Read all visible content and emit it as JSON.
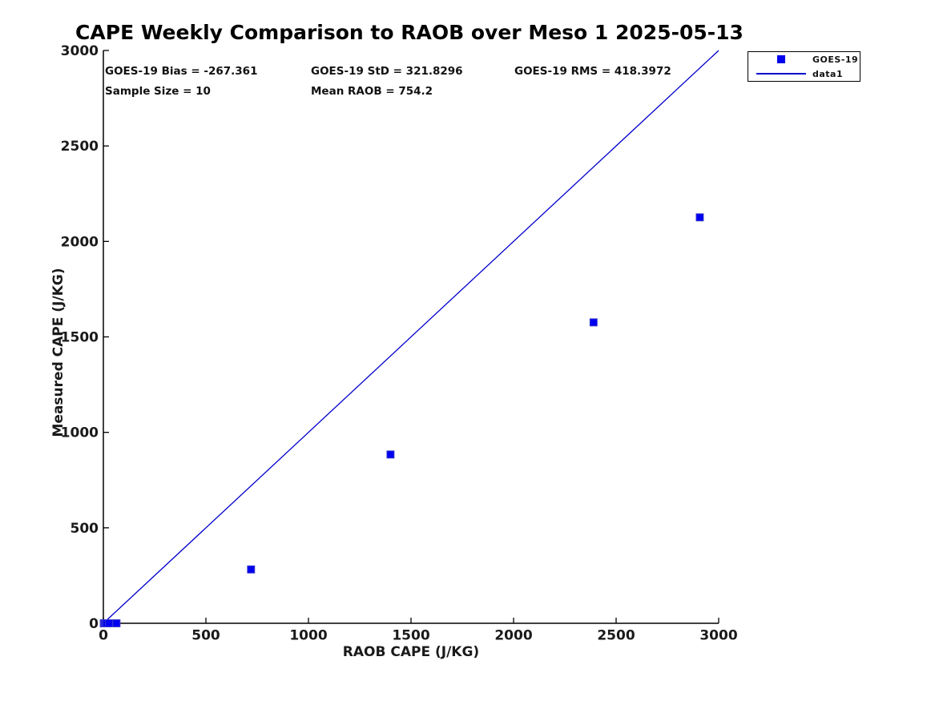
{
  "figure": {
    "title": "CAPE Weekly Comparison to RAOB over Meso 1 2025-05-13",
    "stats": {
      "bias": "GOES-19 Bias = -267.361",
      "std": "GOES-19 StD = 321.8296",
      "rms": "GOES-19 RMS = 418.3972",
      "sample_size": "Sample Size = 10",
      "mean_raob": "Mean RAOB = 754.2"
    },
    "legend": {
      "items": [
        {
          "label": "GOES-19",
          "swatch": "square-marker",
          "color": "#0000f0"
        },
        {
          "label": "data1",
          "swatch": "line",
          "color": "#0000cc"
        }
      ]
    }
  },
  "chart_data": {
    "type": "scatter",
    "title": "CAPE Weekly Comparison to RAOB over Meso 1 2025-05-13",
    "xlabel": "RAOB CAPE (J/KG)",
    "ylabel": "Measured CAPE (J/KG)",
    "xlim": [
      0,
      3000
    ],
    "ylim": [
      0,
      3000
    ],
    "x_ticks": [
      0,
      500,
      1000,
      1500,
      2000,
      2500,
      3000
    ],
    "y_ticks": [
      0,
      500,
      1000,
      1500,
      2000,
      2500,
      3000
    ],
    "grid": false,
    "legend_position": "outside-top-right",
    "series": [
      {
        "name": "GOES-19",
        "type": "scatter",
        "marker": "square",
        "color": "#0000f0",
        "edge_color": "#3d3dcc",
        "points": [
          [
            2,
            0
          ],
          [
            5,
            0
          ],
          [
            10,
            0
          ],
          [
            15,
            0
          ],
          [
            28,
            0
          ],
          [
            64,
            0
          ],
          [
            720,
            282
          ],
          [
            1400,
            884
          ],
          [
            2390,
            1576
          ],
          [
            2908,
            2126
          ]
        ]
      },
      {
        "name": "data1",
        "type": "line",
        "color": "#0000cc",
        "points": [
          [
            0,
            0
          ],
          [
            3000,
            3000
          ]
        ]
      }
    ],
    "annotations": [
      "GOES-19 Bias = -267.361",
      "GOES-19 StD = 321.8296",
      "GOES-19 RMS = 418.3972",
      "Sample Size = 10",
      "Mean RAOB = 754.2"
    ]
  }
}
